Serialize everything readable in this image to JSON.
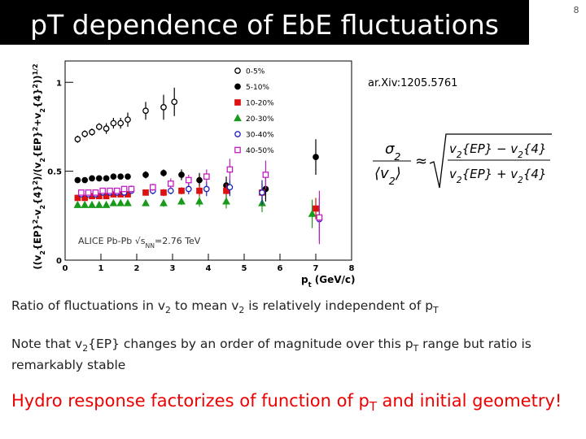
{
  "slide_number": "8",
  "title": "pT dependence of EbE fluctuations",
  "reference": "ar.Xiv:1205.5761",
  "formula": {
    "lhs_num": [
      {
        "text": "σ"
      },
      {
        "sub": "2"
      }
    ],
    "lhs_den": [
      {
        "text": "⟨v"
      },
      {
        "sub": "2"
      },
      {
        "text": "⟩"
      }
    ],
    "approx": "≈",
    "rhs_num": [
      {
        "text": "v"
      },
      {
        "sub": "2"
      },
      {
        "text": "{EP} − v"
      },
      {
        "sub": "2"
      },
      {
        "text": "{4}"
      }
    ],
    "rhs_den": [
      {
        "text": "v"
      },
      {
        "sub": "2"
      },
      {
        "text": "{EP} + v"
      },
      {
        "sub": "2"
      },
      {
        "text": "{4}"
      }
    ]
  },
  "chart_data": {
    "type": "scatter",
    "xlabel": {
      "parts": [
        {
          "text": "p"
        },
        {
          "sub": "t"
        },
        {
          "text": " (GeV/c)"
        }
      ]
    },
    "ylabel": {
      "parts": [
        {
          "text": "((v"
        },
        {
          "sub": "2"
        },
        {
          "text": "{EP}"
        },
        {
          "sup": "2"
        },
        {
          "text": "-v"
        },
        {
          "sub": "2"
        },
        {
          "text": "{4}"
        },
        {
          "sup": "2"
        },
        {
          "text": ")/(v"
        },
        {
          "sub": "2"
        },
        {
          "text": "{EP}"
        },
        {
          "sup": "2"
        },
        {
          "text": "+v"
        },
        {
          "sub": "2"
        },
        {
          "text": "{4}"
        },
        {
          "sup": "2"
        },
        {
          "text": "))"
        },
        {
          "sup": "1/2"
        }
      ]
    },
    "annotation": {
      "parts": [
        {
          "text": "ALICE Pb-Pb √s"
        },
        {
          "sub": "NN"
        },
        {
          "text": "=2.76 TeV"
        }
      ]
    },
    "xlim": [
      0,
      8
    ],
    "xticks": [
      0,
      1,
      2,
      3,
      4,
      5,
      6,
      7,
      8
    ],
    "ylim": [
      0,
      1.12
    ],
    "yticks": [
      0,
      0.5,
      1
    ],
    "series": [
      {
        "name": "0-5%",
        "color": "#000000",
        "marker": "open-circle",
        "x": [
          0.35,
          0.55,
          0.75,
          0.95,
          1.15,
          1.35,
          1.55,
          1.75,
          2.25,
          2.75,
          3.05
        ],
        "values": [
          0.68,
          0.71,
          0.72,
          0.75,
          0.74,
          0.77,
          0.77,
          0.79,
          0.84,
          0.86,
          0.89
        ],
        "errors": [
          0.02,
          0.02,
          0.02,
          0.02,
          0.03,
          0.03,
          0.03,
          0.04,
          0.05,
          0.07,
          0.08
        ]
      },
      {
        "name": "5-10%",
        "color": "#000000",
        "marker": "circle",
        "x": [
          0.35,
          0.55,
          0.75,
          0.95,
          1.15,
          1.35,
          1.55,
          1.75,
          2.25,
          2.75,
          3.25,
          3.75,
          4.5,
          5.6,
          7.0
        ],
        "values": [
          0.45,
          0.45,
          0.46,
          0.46,
          0.46,
          0.47,
          0.47,
          0.47,
          0.48,
          0.49,
          0.48,
          0.45,
          0.42,
          0.4,
          0.58
        ],
        "errors": [
          0.01,
          0.01,
          0.01,
          0.01,
          0.01,
          0.01,
          0.01,
          0.01,
          0.02,
          0.02,
          0.03,
          0.04,
          0.05,
          0.07,
          0.1
        ]
      },
      {
        "name": "10-20%",
        "color": "#dd1111",
        "marker": "square",
        "x": [
          0.35,
          0.55,
          0.75,
          0.95,
          1.15,
          1.35,
          1.55,
          1.75,
          2.25,
          2.75,
          3.25,
          3.75,
          4.5,
          5.5,
          7.0
        ],
        "values": [
          0.35,
          0.35,
          0.36,
          0.36,
          0.36,
          0.37,
          0.37,
          0.37,
          0.38,
          0.38,
          0.39,
          0.39,
          0.39,
          0.38,
          0.29
        ],
        "errors": [
          0.01,
          0.01,
          0.01,
          0.01,
          0.01,
          0.01,
          0.01,
          0.01,
          0.01,
          0.02,
          0.02,
          0.03,
          0.04,
          0.05,
          0.06
        ]
      },
      {
        "name": "20-30%",
        "color": "#1a9a1a",
        "marker": "triangle",
        "x": [
          0.35,
          0.55,
          0.75,
          0.95,
          1.15,
          1.35,
          1.55,
          1.75,
          2.25,
          2.75,
          3.25,
          3.75,
          4.5,
          5.5,
          6.9
        ],
        "values": [
          0.31,
          0.31,
          0.31,
          0.31,
          0.31,
          0.32,
          0.32,
          0.32,
          0.32,
          0.32,
          0.33,
          0.33,
          0.33,
          0.32,
          0.26
        ],
        "errors": [
          0.01,
          0.01,
          0.01,
          0.01,
          0.01,
          0.01,
          0.01,
          0.01,
          0.01,
          0.02,
          0.02,
          0.03,
          0.04,
          0.05,
          0.08
        ]
      },
      {
        "name": "30-40%",
        "color": "#2020c0",
        "marker": "open-circle",
        "x": [
          0.45,
          0.65,
          0.85,
          1.05,
          1.25,
          1.45,
          1.65,
          1.85,
          2.45,
          2.95,
          3.45,
          3.95,
          4.6,
          5.5,
          7.1
        ],
        "values": [
          0.37,
          0.37,
          0.37,
          0.38,
          0.38,
          0.38,
          0.38,
          0.39,
          0.39,
          0.39,
          0.4,
          0.4,
          0.41,
          0.38,
          0.23
        ],
        "errors": [
          0.01,
          0.01,
          0.01,
          0.01,
          0.01,
          0.01,
          0.01,
          0.01,
          0.02,
          0.02,
          0.03,
          0.04,
          0.05,
          0.07,
          0.12
        ]
      },
      {
        "name": "40-50%",
        "color": "#c020c0",
        "marker": "open-square",
        "x": [
          0.45,
          0.65,
          0.85,
          1.05,
          1.25,
          1.45,
          1.65,
          1.85,
          2.45,
          2.95,
          3.45,
          3.95,
          4.6,
          5.6,
          7.1
        ],
        "values": [
          0.38,
          0.38,
          0.38,
          0.39,
          0.39,
          0.39,
          0.4,
          0.4,
          0.41,
          0.43,
          0.45,
          0.47,
          0.51,
          0.48,
          0.24
        ],
        "errors": [
          0.01,
          0.01,
          0.01,
          0.01,
          0.01,
          0.01,
          0.01,
          0.02,
          0.02,
          0.03,
          0.03,
          0.04,
          0.06,
          0.08,
          0.15
        ]
      }
    ]
  },
  "bullets": [
    {
      "parts": [
        {
          "text": "Ratio of fluctuations in v"
        },
        {
          "sub": "2"
        },
        {
          "text": " to mean v"
        },
        {
          "sub": "2"
        },
        {
          "text": " is relatively independent of p"
        },
        {
          "sub": "T"
        }
      ]
    },
    {
      "parts": [
        {
          "text": "Note that v"
        },
        {
          "sub": "2"
        },
        {
          "text": "{EP} changes by an order of magnitude over this p"
        },
        {
          "sub": "T"
        },
        {
          "text": " range but ratio is remarkably stable"
        }
      ]
    }
  ],
  "conclusion": {
    "parts": [
      {
        "text": "Hydro response factorizes of function of p"
      },
      {
        "sub": "T"
      },
      {
        "text": " and initial geometry!"
      }
    ]
  }
}
